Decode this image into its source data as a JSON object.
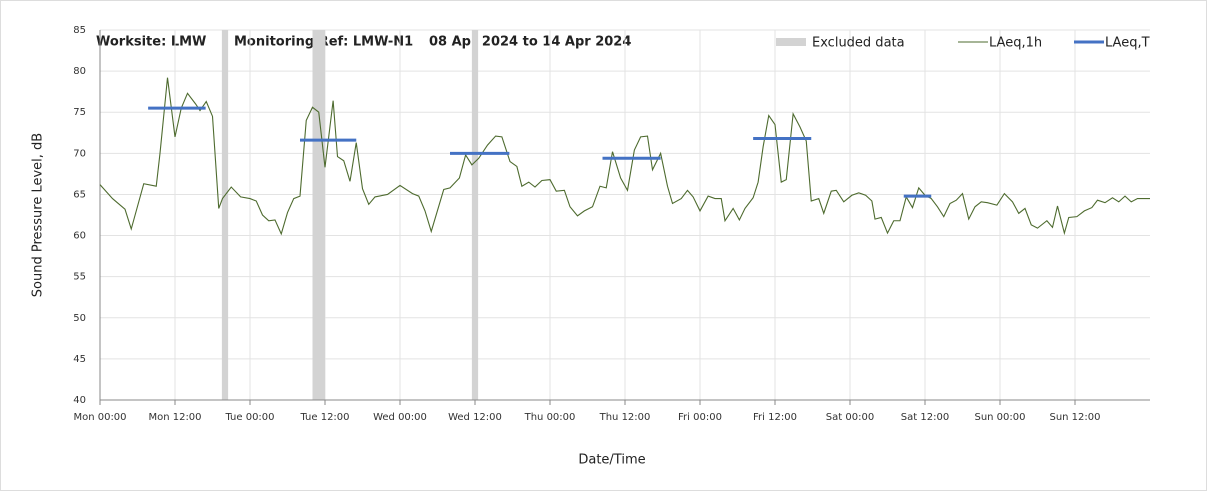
{
  "chart_data": {
    "type": "line",
    "title": {
      "worksite": "Worksite: LMW",
      "ref": "Monitoring Ref: LMW-N1",
      "period": "08 Apr 2024 to 14 Apr 2024"
    },
    "xlabel": "Date/Time",
    "ylabel": "Sound Pressure Level, dB",
    "xlim": [
      0,
      168
    ],
    "ylim": [
      40,
      85
    ],
    "xticks": [
      {
        "value": 0,
        "label": "Mon 00:00"
      },
      {
        "value": 12,
        "label": "Mon 12:00"
      },
      {
        "value": 24,
        "label": "Tue 00:00"
      },
      {
        "value": 36,
        "label": "Tue 12:00"
      },
      {
        "value": 48,
        "label": "Wed 00:00"
      },
      {
        "value": 60,
        "label": "Wed 12:00"
      },
      {
        "value": 72,
        "label": "Thu 00:00"
      },
      {
        "value": 84,
        "label": "Thu 12:00"
      },
      {
        "value": 96,
        "label": "Fri 00:00"
      },
      {
        "value": 108,
        "label": "Fri 12:00"
      },
      {
        "value": 120,
        "label": "Sat 00:00"
      },
      {
        "value": 132,
        "label": "Sat 12:00"
      },
      {
        "value": 144,
        "label": "Sun 00:00"
      },
      {
        "value": 156,
        "label": "Sun 12:00"
      }
    ],
    "yticks": [
      40,
      45,
      50,
      55,
      60,
      65,
      70,
      75,
      80,
      85
    ],
    "grid": true,
    "legend": "top-right",
    "excluded": {
      "name": "Excluded data",
      "color": "#d3d3d3",
      "ranges": [
        [
          19.5,
          20.5
        ],
        [
          34,
          36
        ],
        [
          59.5,
          60.5
        ]
      ]
    },
    "series": [
      {
        "name": "LAeq,1h",
        "color": "#4e6b2f",
        "x": [
          0,
          2,
          4,
          5,
          7,
          9,
          9.6,
          10.8,
          12,
          13,
          14,
          15.3,
          16,
          17,
          18,
          19,
          19.6,
          21,
          22.5,
          24,
          25,
          26,
          27,
          28,
          29,
          30,
          31,
          32,
          33,
          34,
          35,
          36,
          37.3,
          38,
          39,
          40,
          41,
          42,
          43,
          44,
          46,
          48,
          50,
          51,
          52,
          53,
          55,
          56,
          57.5,
          58.5,
          59.5,
          60.6,
          62,
          63.3,
          64.3,
          65.6,
          66.7,
          67.5,
          68.6,
          69.6,
          70.7,
          72,
          73,
          74.3,
          75.2,
          76.4,
          77.5,
          78.8,
          80,
          81,
          82,
          83.3,
          84.4,
          85.5,
          86.5,
          87.6,
          88.4,
          89.7,
          90.8,
          91.6,
          93,
          94,
          94.9,
          96,
          97.3,
          98.4,
          99.4,
          100,
          101.3,
          102.3,
          103.2,
          104.5,
          105.3,
          106.1,
          107,
          108,
          109,
          109.8,
          110.9,
          112,
          113,
          113.8,
          115,
          115.8,
          117,
          117.8,
          119,
          120.3,
          121.4,
          122.5,
          123.5,
          124,
          125,
          126,
          127,
          128,
          129,
          130,
          131,
          132,
          133,
          134,
          135,
          136,
          137,
          138,
          139,
          140,
          141,
          142,
          143.5,
          144.7,
          146,
          147,
          148,
          149,
          150,
          151.5,
          152.4,
          153.2,
          154.3,
          155,
          156.3,
          157.5,
          158.7,
          159.6,
          160.8,
          162,
          163,
          164,
          165,
          166,
          168
        ],
        "values": [
          66.2,
          64.5,
          63.2,
          60.8,
          66.3,
          66,
          70,
          79.2,
          72,
          75.5,
          77.3,
          76,
          75.2,
          76.3,
          74.5,
          63.3,
          64.5,
          65.9,
          64.7,
          64.5,
          64.2,
          62.5,
          61.8,
          61.9,
          60.2,
          62.8,
          64.5,
          64.8,
          74,
          75.6,
          75,
          68.3,
          76.4,
          69.6,
          69.1,
          66.6,
          71.3,
          65.7,
          63.8,
          64.7,
          65,
          66.1,
          65.1,
          64.8,
          63,
          60.5,
          65.6,
          65.8,
          67,
          69.8,
          68.6,
          69.4,
          71,
          72.1,
          72,
          69,
          68.4,
          66,
          66.5,
          65.9,
          66.7,
          66.8,
          65.4,
          65.5,
          63.5,
          62.4,
          63,
          63.5,
          66,
          65.8,
          70.2,
          67,
          65.5,
          70.4,
          72,
          72.1,
          68,
          70,
          66,
          63.9,
          64.5,
          65.5,
          64.7,
          63,
          64.8,
          64.5,
          64.5,
          61.8,
          63.3,
          61.9,
          63.3,
          64.6,
          66.5,
          70.8,
          74.6,
          73.5,
          66.5,
          66.8,
          74.8,
          73.2,
          71.5,
          64.2,
          64.5,
          62.7,
          65.4,
          65.5,
          64.1,
          64.9,
          65.2,
          64.9,
          64.2,
          62,
          62.2,
          60.3,
          61.8,
          61.8,
          64.7,
          63.4,
          65.8,
          64.9,
          64.5,
          63.5,
          62.3,
          63.9,
          64.3,
          65.1,
          62,
          63.5,
          64.1,
          64,
          63.7,
          65.1,
          64.1,
          62.7,
          63.3,
          61.3,
          60.9,
          61.8,
          61,
          63.6,
          60.3,
          62.2,
          62.3,
          63,
          63.4,
          64.3,
          64,
          64.6,
          64.1,
          64.8,
          64.1,
          64.5,
          64.5
        ]
      },
      {
        "name": "LAeq,T",
        "color": "#4472c4",
        "segments": [
          {
            "x": [
              7.7,
              16.9
            ],
            "value": 75.5
          },
          {
            "x": [
              32,
              41
            ],
            "value": 71.6
          },
          {
            "x": [
              56,
              65.5
            ],
            "value": 70
          },
          {
            "x": [
              80.4,
              89.7
            ],
            "value": 69.4
          },
          {
            "x": [
              104.5,
              113.8
            ],
            "value": 71.8
          },
          {
            "x": [
              128.6,
              133
            ],
            "value": 64.8
          }
        ]
      }
    ]
  }
}
